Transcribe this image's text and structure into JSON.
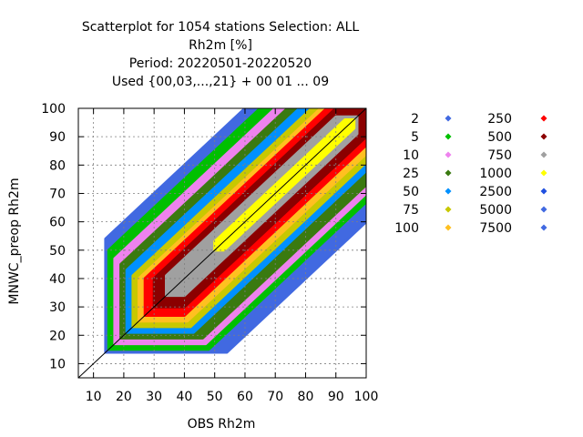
{
  "chart_data": {
    "type": "scatter",
    "title_lines": [
      "Scatterplot for 1054 stations Selection: ALL",
      "Rh2m [%]",
      "Period: 20220501-20220520",
      "Used {00,03,...,21} + 00 01 ... 09"
    ],
    "xlabel": "OBS Rh2m",
    "ylabel": "MNWC_preop Rh2m",
    "xlim": [
      5,
      100
    ],
    "ylim": [
      5,
      100
    ],
    "xticks": [
      10,
      20,
      30,
      40,
      50,
      60,
      70,
      80,
      90,
      100
    ],
    "yticks": [
      10,
      20,
      30,
      40,
      50,
      60,
      70,
      80,
      90,
      100
    ],
    "grid": true,
    "reference_line": "y = x",
    "legend_position": "right",
    "legend": [
      {
        "label": "2",
        "color": "#4169e1"
      },
      {
        "label": "5",
        "color": "#00c000"
      },
      {
        "label": "10",
        "color": "#ee82ee"
      },
      {
        "label": "25",
        "color": "#3a7a10"
      },
      {
        "label": "50",
        "color": "#0090ff"
      },
      {
        "label": "75",
        "color": "#c8c800"
      },
      {
        "label": "100",
        "color": "#ffc020"
      },
      {
        "label": "250",
        "color": "#ff0000"
      },
      {
        "label": "500",
        "color": "#8b0000"
      },
      {
        "label": "750",
        "color": "#a0a0a0"
      },
      {
        "label": "1000",
        "color": "#ffff00"
      },
      {
        "label": "2500",
        "color": "#2050e0"
      },
      {
        "label": "5000",
        "color": "#4169e1"
      },
      {
        "label": "7500",
        "color": "#4169e1"
      }
    ],
    "density_bands": [
      {
        "count": "2",
        "color": "#4169e1",
        "upper_offset": 40,
        "lower_offset": 40,
        "min": 14,
        "max": 100
      },
      {
        "count": "5",
        "color": "#00c000",
        "upper_offset": 35,
        "lower_offset": 33,
        "min": 15,
        "max": 100
      },
      {
        "count": "10",
        "color": "#ee82ee",
        "upper_offset": 30,
        "lower_offset": 30,
        "min": 17,
        "max": 100
      },
      {
        "count": "25",
        "color": "#3a7a10",
        "upper_offset": 26,
        "lower_offset": 27,
        "min": 19,
        "max": 100
      },
      {
        "count": "50",
        "color": "#0090ff",
        "upper_offset": 22,
        "lower_offset": 22,
        "min": 21,
        "max": 100
      },
      {
        "count": "75",
        "color": "#c8c800",
        "upper_offset": 18,
        "lower_offset": 19,
        "min": 23,
        "max": 100
      },
      {
        "count": "100",
        "color": "#ffc020",
        "upper_offset": 15,
        "lower_offset": 16,
        "min": 25,
        "max": 100
      },
      {
        "count": "250",
        "color": "#ff0000",
        "upper_offset": 13,
        "lower_offset": 13,
        "min": 27,
        "max": 100
      },
      {
        "count": "500",
        "color": "#8b0000",
        "upper_offset": 10,
        "lower_offset": 10,
        "min": 30,
        "max": 100
      },
      {
        "count": "750",
        "color": "#a0a0a0",
        "upper_offset": 7,
        "lower_offset": 6,
        "min": 34,
        "max": 97
      },
      {
        "count": "1000",
        "color": "#ffff00",
        "upper_offset": 3,
        "lower_offset": 3,
        "min": 50,
        "max": 96
      }
    ]
  }
}
